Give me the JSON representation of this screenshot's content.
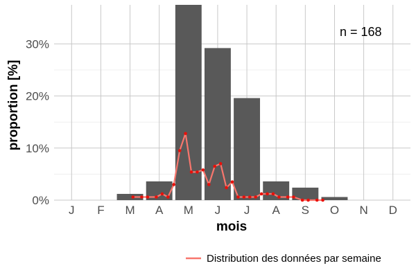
{
  "chart_data": {
    "type": "bar",
    "xlabel": "mois",
    "ylabel": "proportion [%]",
    "ylim": [
      0,
      37.5
    ],
    "y_ticks": [
      0,
      10,
      20,
      30
    ],
    "y_tick_labels": [
      "0%",
      "10%",
      "20%",
      "30%"
    ],
    "categories": [
      "J",
      "F",
      "M",
      "A",
      "M",
      "J",
      "J",
      "A",
      "S",
      "O",
      "N",
      "D"
    ],
    "values": [
      0,
      0,
      1.2,
      3.6,
      37.5,
      29.2,
      19.6,
      3.6,
      2.4,
      0.6,
      0,
      0
    ],
    "bar_color": "#595959",
    "annotation": "n = 168",
    "grid": true,
    "legend_position": "bottom-right",
    "series": [
      {
        "name": "Distribution des données par semaine",
        "type": "line",
        "color": "#f8766d",
        "x": [
          2.1,
          2.4,
          2.6,
          2.9,
          3.1,
          3.3,
          3.5,
          3.7,
          3.9,
          4.1,
          4.3,
          4.5,
          4.7,
          4.9,
          5.1,
          5.3,
          5.5,
          5.7,
          5.9,
          6.1,
          6.3,
          6.5,
          6.7,
          6.9,
          7.1,
          7.4,
          7.6,
          7.9,
          8.1,
          8.4,
          8.6
        ],
        "y": [
          0.6,
          0.6,
          0.6,
          0.6,
          1.2,
          0.6,
          3.0,
          9.5,
          12.8,
          5.4,
          5.4,
          5.8,
          3.0,
          6.5,
          7.0,
          2.4,
          3.5,
          0.6,
          0.6,
          0.6,
          0.6,
          1.2,
          1.2,
          1.2,
          0.6,
          0.6,
          0.6,
          0,
          0,
          0,
          0
        ]
      }
    ]
  }
}
